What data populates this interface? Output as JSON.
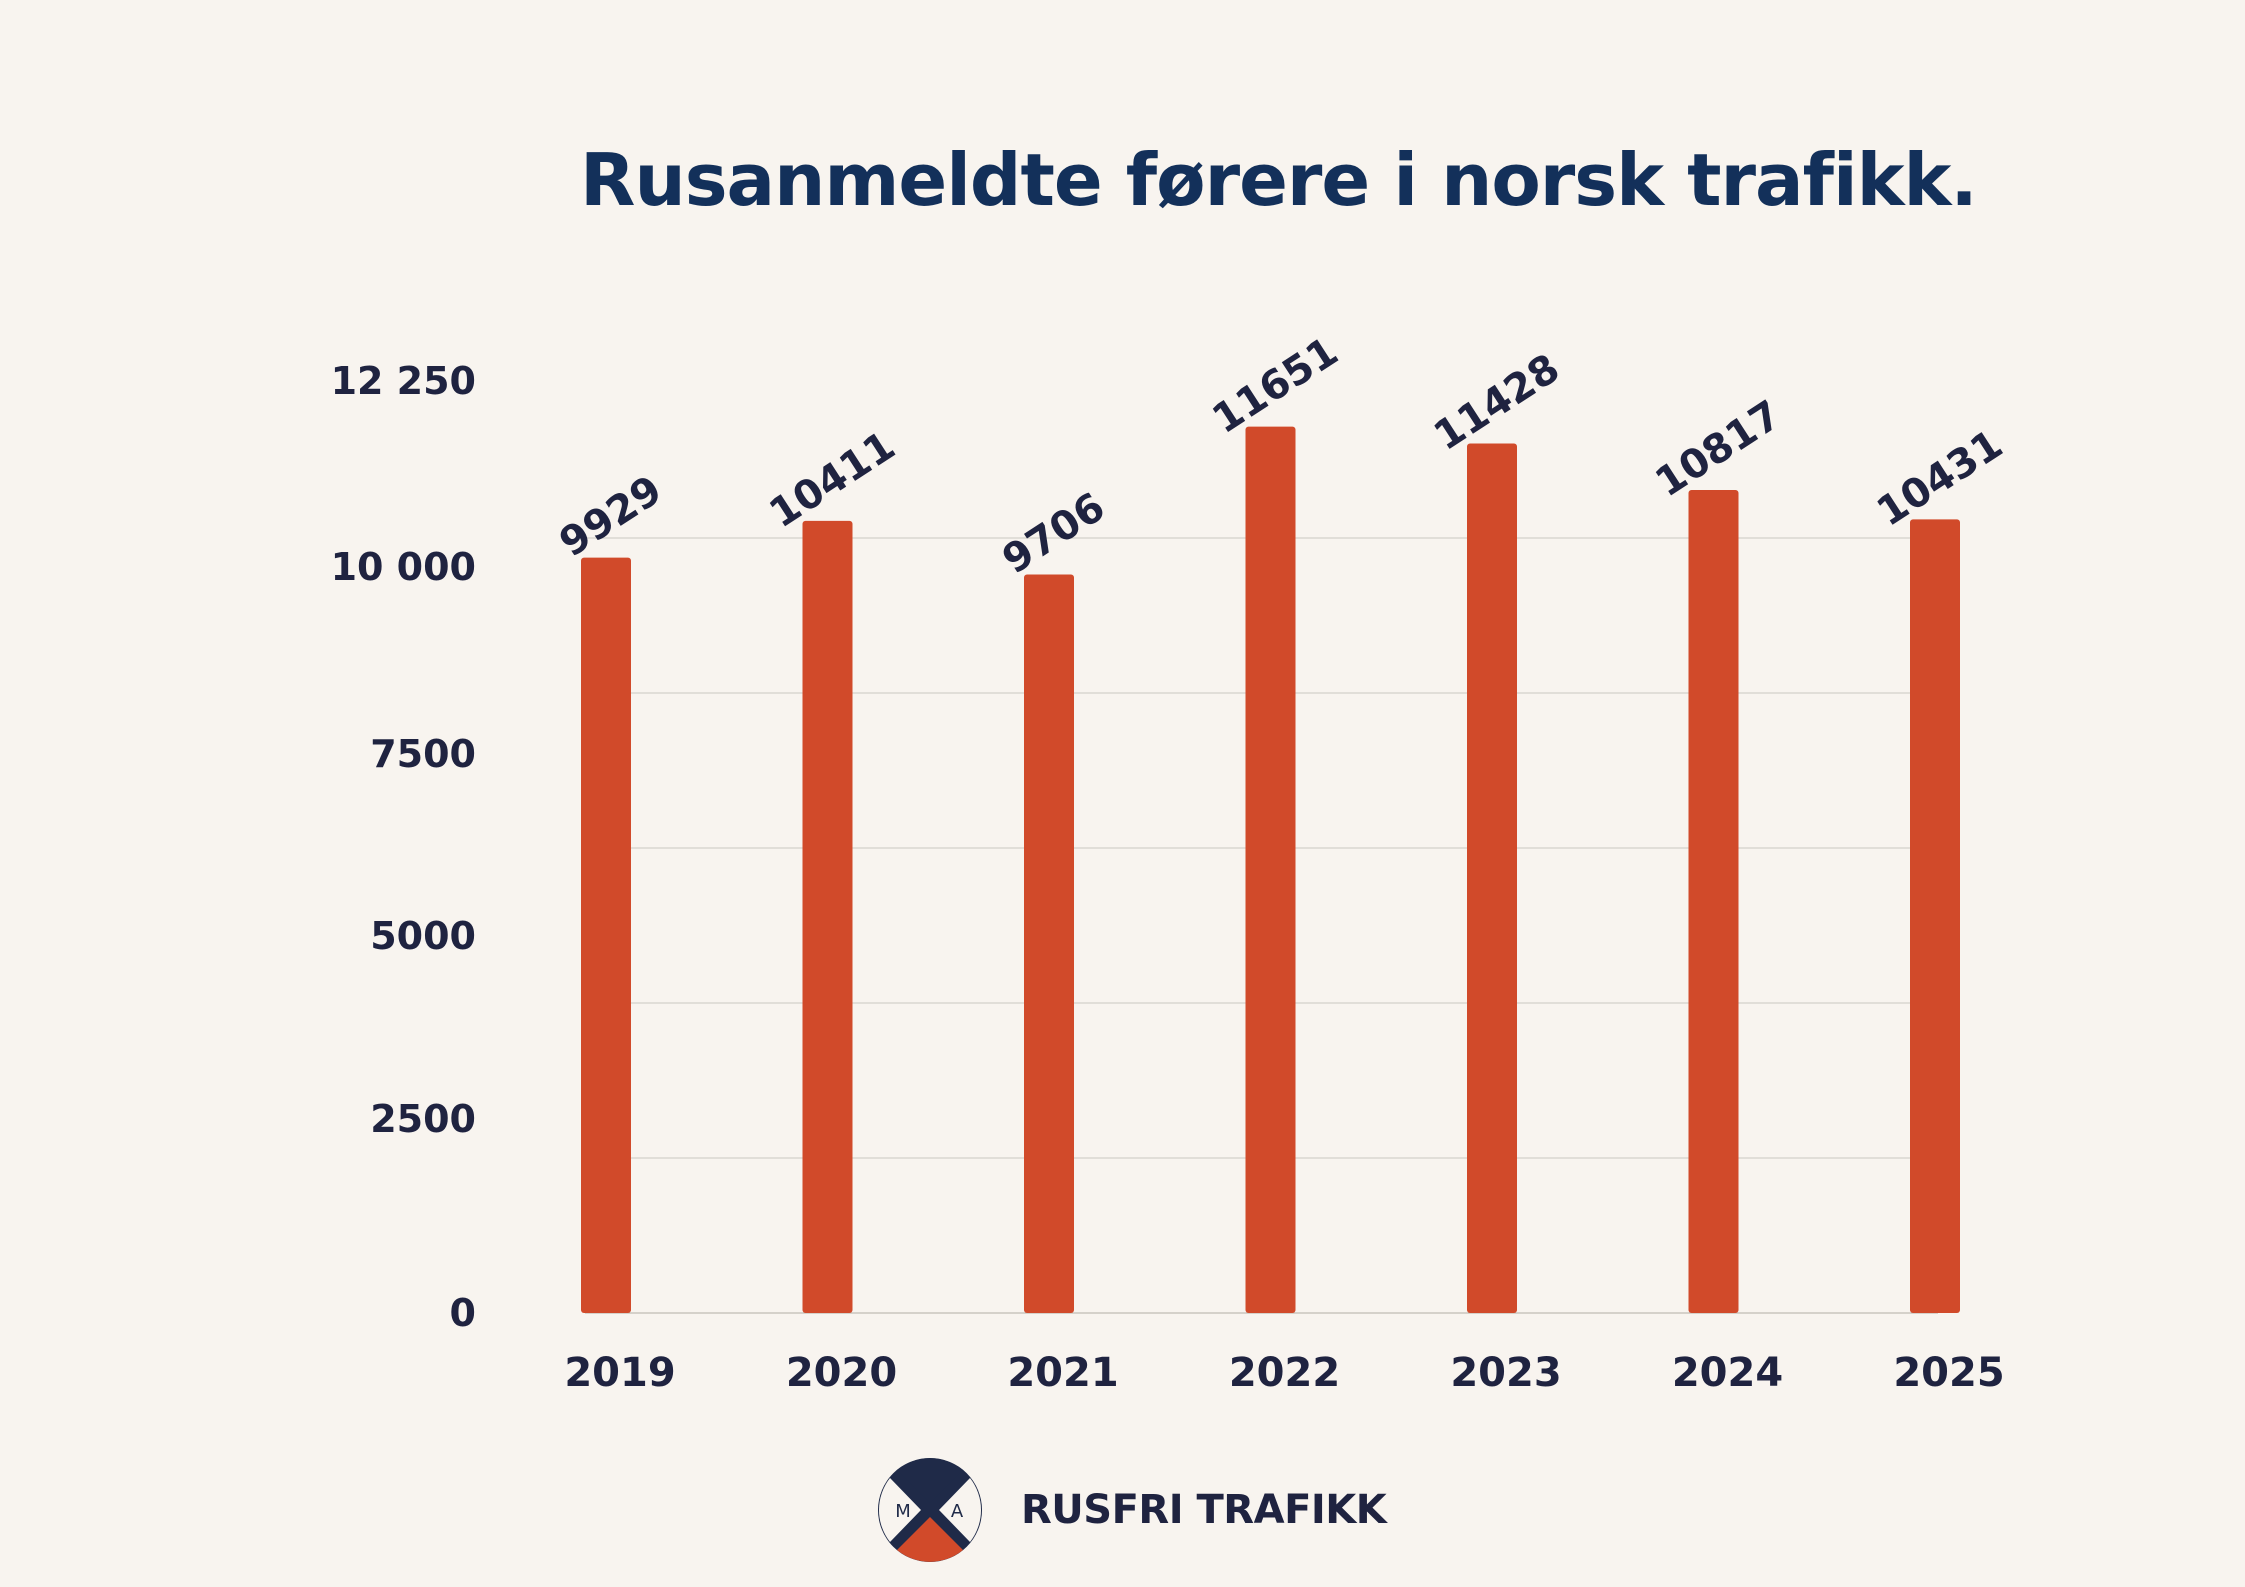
{
  "theme": {
    "background": "#f8f4ef",
    "bar_color": "#d14a2a",
    "text_color": "#1f2340",
    "title_color": "#13305a",
    "grid_color": "#d9d6d0",
    "logo_dark": "#1f2a48",
    "logo_accent": "#d14a2a"
  },
  "chart_data": {
    "type": "bar",
    "title": "Rusanmeldte førere i norsk trafikk.",
    "xlabel": "",
    "ylabel": "",
    "categories": [
      "2019",
      "2020",
      "2021",
      "2022",
      "2023",
      "2024",
      "2025"
    ],
    "values": [
      9929,
      10411,
      9706,
      11651,
      11428,
      10817,
      10431
    ],
    "data_labels": [
      "9929",
      "10411",
      "9706",
      "11651",
      "11428",
      "10817",
      "10431"
    ],
    "ylim": [
      0,
      12250
    ],
    "y_ticks": [
      0,
      2500,
      5000,
      7500,
      10000,
      12250
    ],
    "y_tick_labels": [
      "0",
      "2500",
      "5000",
      "7500",
      "10 000",
      "12 250"
    ],
    "grid": true,
    "legend": "none"
  },
  "footer": {
    "logo_letters": [
      "M",
      "A"
    ],
    "brand": "RUSFRI TRAFIKK"
  }
}
